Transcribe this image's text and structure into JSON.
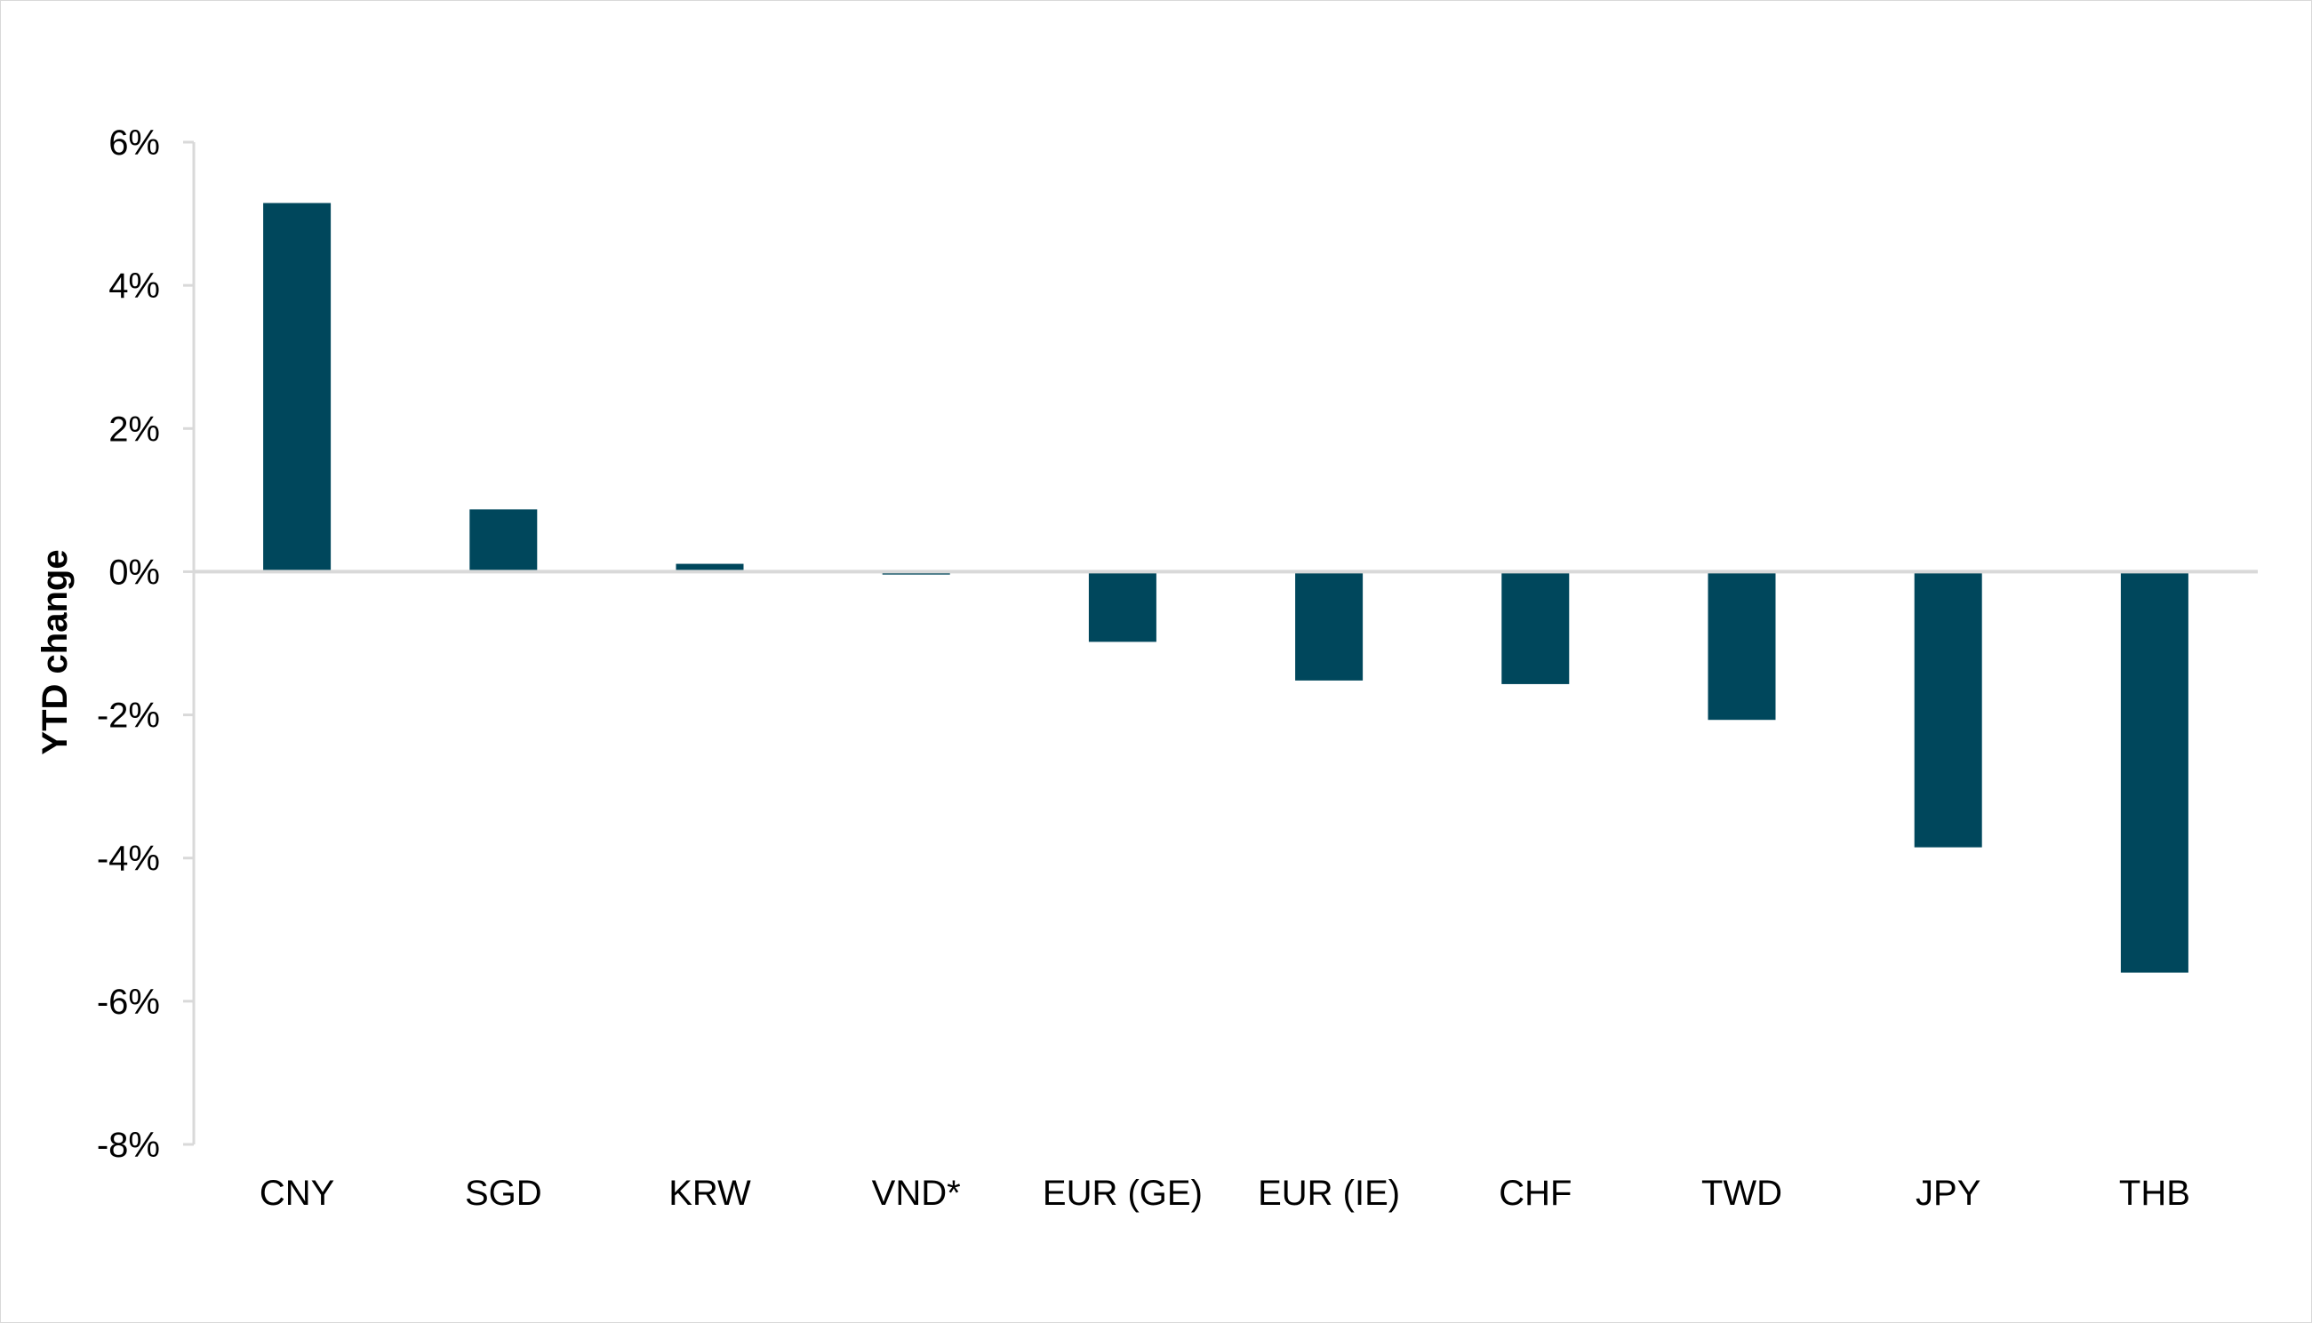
{
  "chart_data": {
    "type": "bar",
    "title": "",
    "xlabel": "",
    "ylabel": "YTD change",
    "categories": [
      "CNY",
      "SGD",
      "KRW",
      "VND*",
      "EUR (GE)",
      "EUR (IE)",
      "CHF",
      "TWD",
      "JPY",
      "THB"
    ],
    "values": [
      5.15,
      0.87,
      0.11,
      -0.04,
      -0.98,
      -1.52,
      -1.57,
      -2.07,
      -3.85,
      -5.6
    ],
    "value_unit": "%",
    "ylim": [
      -8,
      6
    ],
    "yticks": [
      6,
      4,
      2,
      0,
      -2,
      -4,
      -6,
      -8
    ],
    "ytick_labels": [
      "6%",
      "4%",
      "2%",
      "0%",
      "-2%",
      "-4%",
      "-6%",
      "-8%"
    ],
    "grid": false,
    "legend": "none",
    "bar_color": "#00475c",
    "axis_color": "#d9d9d9"
  }
}
